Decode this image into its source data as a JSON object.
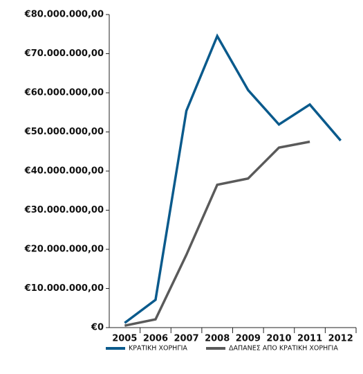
{
  "chart_data": {
    "type": "line",
    "categories": [
      "2005",
      "2006",
      "2007",
      "2008",
      "2009",
      "2010",
      "2011",
      "2012"
    ],
    "series": [
      {
        "name": "ΚΡΑΤΙΚΗ ΧΟΡΗΓΙΑ",
        "color": "#0a5a8c",
        "values": [
          1200000,
          7100000,
          55400000,
          74500000,
          60700000,
          51900000,
          57000000,
          47800000
        ]
      },
      {
        "name": "ΔΑΠΑΝΕΣ ΑΠΟ ΚΡΑΤΙΚΗ ΧΟΡΗΓΙΑ",
        "color": "#5a5a5a",
        "values": [
          500000,
          2100000,
          18600000,
          36500000,
          38100000,
          46000000,
          47500000,
          null
        ]
      }
    ],
    "ylim": [
      0,
      80000000
    ],
    "yticks": [
      {
        "value": 0,
        "label": "€0"
      },
      {
        "value": 10000000,
        "label": "€10.000.000,00"
      },
      {
        "value": 20000000,
        "label": "€20.000.000,00"
      },
      {
        "value": 30000000,
        "label": "€30.000.000,00"
      },
      {
        "value": 40000000,
        "label": "€40.000.000,00"
      },
      {
        "value": 50000000,
        "label": "€50.000.000,00"
      },
      {
        "value": 60000000,
        "label": "€60.000.000,00"
      },
      {
        "value": 70000000,
        "label": "€70.000.000,00"
      },
      {
        "value": 80000000,
        "label": "€80.000.000,00"
      }
    ],
    "legend": "bottom"
  }
}
